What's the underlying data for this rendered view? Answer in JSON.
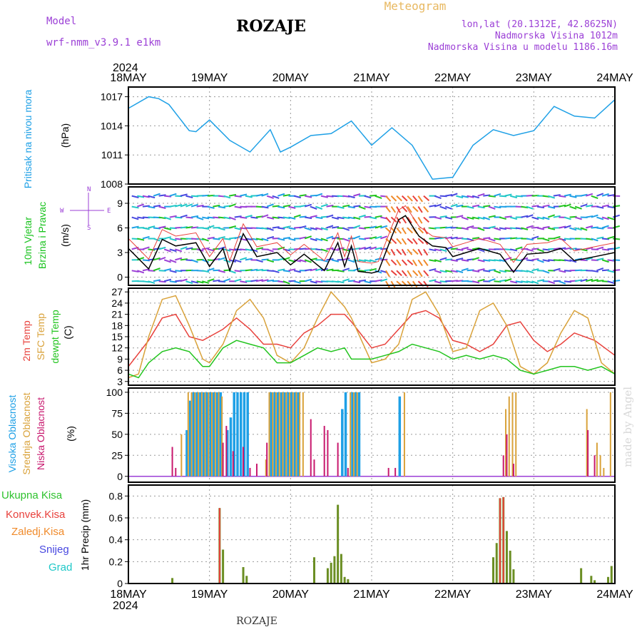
{
  "header": {
    "model_label": "Model",
    "model_name": "wrf-nmm_v3.9.1  e1km",
    "title": "ROZAJE",
    "meteogram_label": "Meteogram",
    "coords": "lon,lat (20.1312E, 42.8625N)",
    "elevation": "Nadmorska Visina 1012m",
    "model_elevation": "Nadmorska Visina u modelu 1186.16m",
    "year_top": "2024",
    "year_bottom": "2024",
    "footer": "ROZAJE",
    "watermark": "made by Angel"
  },
  "colors": {
    "pressure": "#1ea0e6",
    "temp2m": "#e8413c",
    "sfc": "#d9a23a",
    "dewpt": "#22c41e",
    "wind_label": "#19c31e",
    "axes": "#000000",
    "grid": "#9a9a9a",
    "high_cloud": "#1ea0e6",
    "mid_cloud": "#d9a23a",
    "low_cloud": "#c8186e",
    "purple": "#9b3fd6",
    "total_precip": "#2ec22e",
    "conv_precip": "#e8413c",
    "frz_precip": "#f08a2a",
    "snow": "#4848e0",
    "hail": "#1ec8c8"
  },
  "dates": [
    "18MAY",
    "19MAY",
    "20MAY",
    "21MAY",
    "22MAY",
    "23MAY",
    "24MAY"
  ],
  "panels": {
    "pressure": {
      "ylabel_main": "Pritisak na nivou mora",
      "ylabel_unit": "(hPa)",
      "ticks": [
        "1017",
        "1014",
        "1011",
        "1008"
      ]
    },
    "wind": {
      "ylabel_1": "10m Vjetar",
      "ylabel_2": "Brzina i Pravac",
      "ylabel_unit": "(m/s)",
      "ticks": [
        "9",
        "6",
        "3",
        "0"
      ],
      "compass_w": "W",
      "compass_e": "E",
      "compass_n": "N",
      "compass_s": "S"
    },
    "temp": {
      "ylabel_1": "2m Temp",
      "ylabel_2": "SFC Temp",
      "ylabel_3": "dewpt Temp",
      "ylabel_unit": "(C)",
      "ticks": [
        "27",
        "24",
        "21",
        "18",
        "15",
        "12",
        "9",
        "6",
        "3"
      ]
    },
    "cloud": {
      "ylabel_1": "Visoka Oblacnost",
      "ylabel_2": "Srednja Oblacnost",
      "ylabel_3": "Niska Oblacnost",
      "ylabel_unit": "(%)",
      "ticks": [
        "100",
        "75",
        "50",
        "25",
        "0"
      ]
    },
    "precip": {
      "ylabel": "1hr Precip (mm)",
      "ticks": [
        "0.8",
        "0.6",
        "0.4",
        "0.2",
        "0"
      ],
      "legend": [
        "Ukupna Kisa",
        "Konvek.Kisa",
        "Zaledj.Kisa",
        "Snijeg",
        "Grad"
      ]
    }
  },
  "chart_data": [
    {
      "type": "line",
      "name": "pressure",
      "x_unit": "hours since 18MAY 00",
      "ylim": [
        1008,
        1018
      ],
      "x": [
        0,
        6,
        9,
        12,
        18,
        20,
        24,
        30,
        36,
        42,
        45,
        48,
        54,
        60,
        66,
        72,
        78,
        84,
        90,
        96,
        102,
        108,
        114,
        120,
        126,
        132,
        138,
        144
      ],
      "y": [
        1015.8,
        1017.0,
        1016.8,
        1016.2,
        1013.5,
        1013.4,
        1014.6,
        1012.5,
        1011.3,
        1013.6,
        1011.3,
        1011.8,
        1013.0,
        1013.2,
        1014.5,
        1012.0,
        1013.8,
        1012.0,
        1008.5,
        1008.7,
        1012.0,
        1013.6,
        1013.0,
        1013.5,
        1016.0,
        1015.0,
        1014.8,
        1016.7
      ]
    },
    {
      "type": "line",
      "name": "wind",
      "ylim": [
        -1,
        11
      ],
      "x": [
        0,
        6,
        10,
        14,
        20,
        24,
        28,
        30,
        34,
        38,
        44,
        48,
        52,
        58,
        62,
        64,
        66,
        68,
        72,
        74,
        78,
        80,
        82,
        86,
        90,
        94,
        96,
        100,
        104,
        110,
        114,
        118,
        124,
        128,
        132,
        138,
        144
      ],
      "y": [
        3.5,
        1.0,
        4.6,
        3.8,
        4.2,
        1.3,
        3.5,
        0.8,
        5.3,
        2.5,
        3.0,
        1.5,
        2.8,
        0.8,
        4.2,
        1.3,
        3.8,
        0.7,
        0.5,
        0.7,
        5.0,
        7.0,
        7.5,
        5.0,
        3.8,
        3.6,
        2.5,
        3.0,
        3.5,
        2.8,
        0.6,
        2.8,
        3.0,
        3.5,
        2.0,
        2.5,
        3.0
      ]
    },
    {
      "type": "line",
      "series": [
        {
          "name": "2m Temp",
          "x": [
            0,
            6,
            10,
            14,
            18,
            22,
            24,
            28,
            32,
            36,
            40,
            44,
            48,
            52,
            56,
            60,
            64,
            66,
            72,
            76,
            80,
            84,
            88,
            92,
            96,
            100,
            104,
            108,
            112,
            116,
            120,
            124,
            128,
            132,
            138,
            144
          ],
          "y": [
            7,
            14,
            20,
            21,
            15,
            14,
            15,
            17,
            20,
            17,
            13,
            13,
            12,
            16,
            18,
            21,
            21,
            19,
            12,
            13,
            17,
            21,
            22,
            20,
            14,
            13,
            11,
            13,
            18,
            19,
            14,
            11,
            13,
            16,
            14,
            10
          ]
        },
        {
          "name": "SFC Temp",
          "x": [
            0,
            3,
            6,
            10,
            14,
            18,
            22,
            24,
            28,
            32,
            36,
            40,
            44,
            48,
            52,
            56,
            60,
            64,
            66,
            72,
            76,
            80,
            84,
            88,
            92,
            96,
            100,
            104,
            108,
            112,
            116,
            120,
            124,
            128,
            132,
            136,
            140,
            144
          ],
          "y": [
            4,
            5,
            15,
            25,
            26,
            18,
            9,
            8,
            13,
            22,
            25,
            20,
            10,
            8,
            12,
            20,
            27,
            23,
            20,
            8,
            9,
            13,
            25,
            27,
            21,
            11,
            12,
            22,
            24,
            18,
            7,
            5,
            8,
            16,
            22,
            20,
            8,
            5
          ]
        },
        {
          "name": "dewpt Temp",
          "x": [
            0,
            3,
            6,
            10,
            14,
            18,
            22,
            24,
            28,
            32,
            36,
            40,
            44,
            48,
            52,
            56,
            60,
            64,
            66,
            72,
            76,
            80,
            84,
            88,
            92,
            96,
            100,
            104,
            108,
            112,
            116,
            120,
            124,
            128,
            132,
            136,
            140,
            144
          ],
          "y": [
            5,
            4,
            8,
            11,
            12,
            11,
            7,
            7,
            12,
            14,
            13,
            12,
            8,
            8,
            10,
            12,
            11,
            12,
            9,
            9,
            10,
            11,
            13,
            12,
            11,
            9,
            10,
            9,
            10,
            9,
            6,
            5,
            6,
            7,
            7,
            6,
            7,
            5
          ]
        }
      ],
      "ylim": [
        2,
        28
      ]
    },
    {
      "type": "bar",
      "ylim": [
        0,
        100
      ],
      "series": [
        {
          "name": "Visoka Oblacnost",
          "x": [
            17,
            18,
            19,
            20,
            21,
            22,
            23,
            24,
            25,
            26,
            27,
            29,
            30,
            31,
            32,
            33,
            34,
            35,
            42,
            43,
            44,
            45,
            46,
            47,
            48,
            49,
            50,
            63,
            64,
            66,
            67,
            68,
            80
          ],
          "y": [
            55,
            90,
            100,
            100,
            100,
            100,
            100,
            100,
            100,
            100,
            100,
            55,
            70,
            100,
            100,
            100,
            100,
            100,
            100,
            100,
            100,
            100,
            100,
            100,
            100,
            100,
            100,
            80,
            100,
            100,
            100,
            100,
            95
          ]
        },
        {
          "name": "Srednja Oblacnost",
          "x": [
            16,
            18,
            19,
            20,
            21,
            22,
            23,
            24,
            25,
            26,
            27,
            28,
            41,
            42,
            43,
            44,
            45,
            46,
            47,
            48,
            49,
            50,
            51,
            52,
            66,
            67,
            68,
            82,
            112,
            113,
            114,
            115,
            136,
            139,
            140,
            141,
            143
          ],
          "y": [
            50,
            100,
            100,
            100,
            100,
            100,
            100,
            100,
            100,
            100,
            100,
            95,
            20,
            100,
            100,
            100,
            100,
            100,
            100,
            100,
            100,
            100,
            100,
            100,
            100,
            100,
            100,
            100,
            80,
            95,
            100,
            100,
            80,
            40,
            25,
            10,
            100
          ]
        },
        {
          "name": "Niska Oblacnost",
          "x": [
            13,
            14,
            28,
            29,
            31,
            34,
            36,
            38,
            41,
            54,
            55,
            58,
            59,
            62,
            65,
            77,
            79,
            111,
            112,
            114,
            136,
            138
          ],
          "y": [
            35,
            10,
            40,
            60,
            30,
            35,
            10,
            15,
            40,
            68,
            20,
            60,
            55,
            40,
            10,
            10,
            10,
            25,
            50,
            15,
            55,
            25
          ]
        }
      ]
    },
    {
      "type": "bar",
      "ylim": [
        0,
        0.9
      ],
      "series": [
        {
          "name": "Ukupna Kisa",
          "x": [
            13,
            26,
            27,
            28,
            34,
            35,
            55,
            59,
            60,
            61,
            62,
            63,
            64,
            65,
            108,
            109,
            110,
            111,
            112,
            113,
            114,
            134,
            137,
            138,
            142,
            143
          ],
          "y": [
            0.05,
            0.0,
            0.69,
            0.31,
            0.15,
            0.07,
            0.24,
            0.14,
            0.19,
            0.25,
            0.72,
            0.27,
            0.06,
            0.04,
            0.24,
            0.37,
            0.78,
            0.79,
            0.48,
            0.3,
            0.13,
            0.14,
            0.07,
            0.03,
            0.06,
            0.16
          ]
        },
        {
          "name": "Konvek.Kisa",
          "x": [
            27,
            110,
            111
          ],
          "y": [
            0.69,
            0.78,
            0.79
          ]
        }
      ]
    }
  ]
}
